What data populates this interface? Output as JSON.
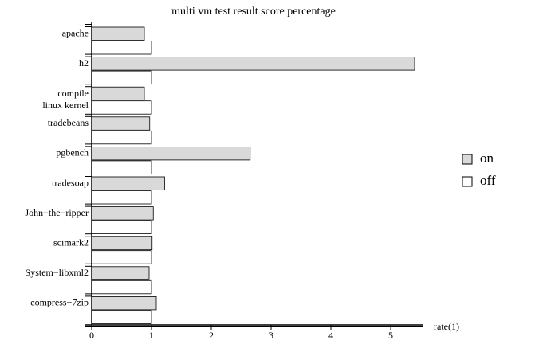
{
  "chart_data": {
    "type": "bar",
    "orientation": "horizontal",
    "title": "multi vm test result score percentage",
    "x_label": "rate(1)",
    "categories": [
      "apache",
      "h2",
      "compile\nlinux kernel",
      "tradebeans",
      "pgbench",
      "tradesoap",
      "John−the−ripper",
      "scimark2",
      "System−libxml2",
      "compress−7zip"
    ],
    "series": [
      {
        "name": "on",
        "color": "#d9d9d9",
        "values": [
          0.88,
          5.4,
          0.88,
          0.97,
          2.65,
          1.22,
          1.03,
          1.01,
          0.96,
          1.08
        ]
      },
      {
        "name": "off",
        "color": "#ffffff",
        "values": [
          1,
          1,
          1,
          1,
          1,
          1,
          1,
          1,
          1,
          1
        ]
      }
    ],
    "xlim": [
      0,
      5.5
    ],
    "xticks": [
      0,
      1,
      2,
      3,
      4,
      5
    ],
    "legend": "right"
  }
}
